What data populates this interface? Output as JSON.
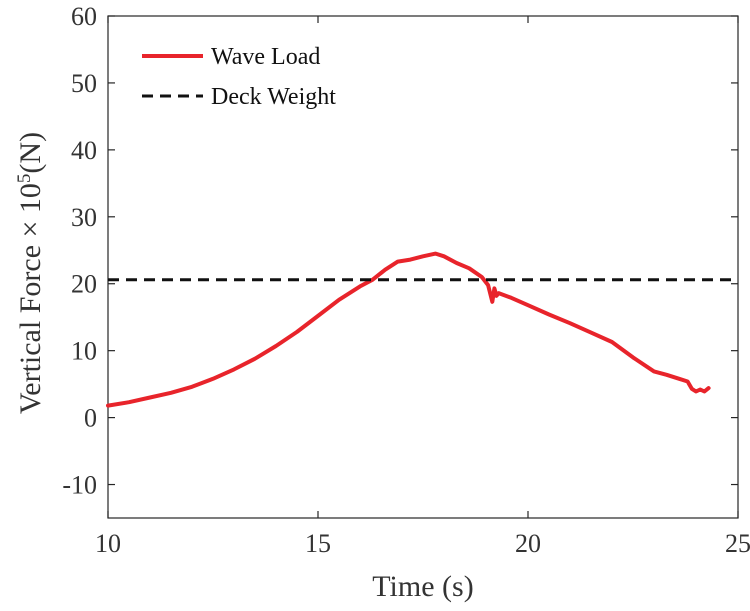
{
  "chart_data": {
    "type": "line",
    "title": "",
    "xlabel": "Time (s)",
    "ylabel": "Vertical Force × 10",
    "ylabel_sup": "5",
    "ylabel_unit": "(N)",
    "xlim": [
      10,
      25
    ],
    "ylim": [
      -15,
      60
    ],
    "xticks": [
      10,
      15,
      20,
      25
    ],
    "xtick_labels": [
      "10",
      "15",
      "20",
      "25"
    ],
    "yticks": [
      -10,
      0,
      10,
      20,
      30,
      40,
      50,
      60
    ],
    "ytick_labels": [
      "-10",
      "0",
      "10",
      "20",
      "30",
      "40",
      "50",
      "60"
    ],
    "grid": false,
    "legend_position": "top-left",
    "series": [
      {
        "name": "Wave Load",
        "style": "solid",
        "color": "#e8242b",
        "x": [
          10.0,
          10.5,
          11.0,
          11.5,
          12.0,
          12.5,
          13.0,
          13.5,
          14.0,
          14.5,
          15.0,
          15.5,
          16.0,
          16.3,
          16.6,
          16.9,
          17.2,
          17.5,
          17.8,
          18.0,
          18.3,
          18.6,
          18.9,
          19.05,
          19.15,
          19.2,
          19.25,
          19.3,
          19.6,
          20.0,
          20.5,
          21.0,
          21.5,
          22.0,
          22.5,
          23.0,
          23.3,
          23.6,
          23.8,
          23.9,
          24.0,
          24.1,
          24.2,
          24.3
        ],
        "y": [
          1.8,
          2.3,
          3.0,
          3.7,
          4.6,
          5.8,
          7.2,
          8.8,
          10.7,
          12.8,
          15.2,
          17.6,
          19.6,
          20.6,
          22.1,
          23.3,
          23.6,
          24.1,
          24.5,
          24.1,
          23.1,
          22.3,
          21.0,
          19.8,
          17.3,
          19.3,
          18.2,
          18.6,
          17.9,
          16.8,
          15.4,
          14.1,
          12.7,
          11.3,
          9.0,
          6.9,
          6.4,
          5.8,
          5.4,
          4.3,
          3.9,
          4.2,
          3.9,
          4.4
        ]
      },
      {
        "name": "Deck Weight",
        "style": "dashed",
        "color": "#111111",
        "x": [
          10,
          25
        ],
        "y": [
          20.6,
          20.6
        ]
      }
    ]
  }
}
